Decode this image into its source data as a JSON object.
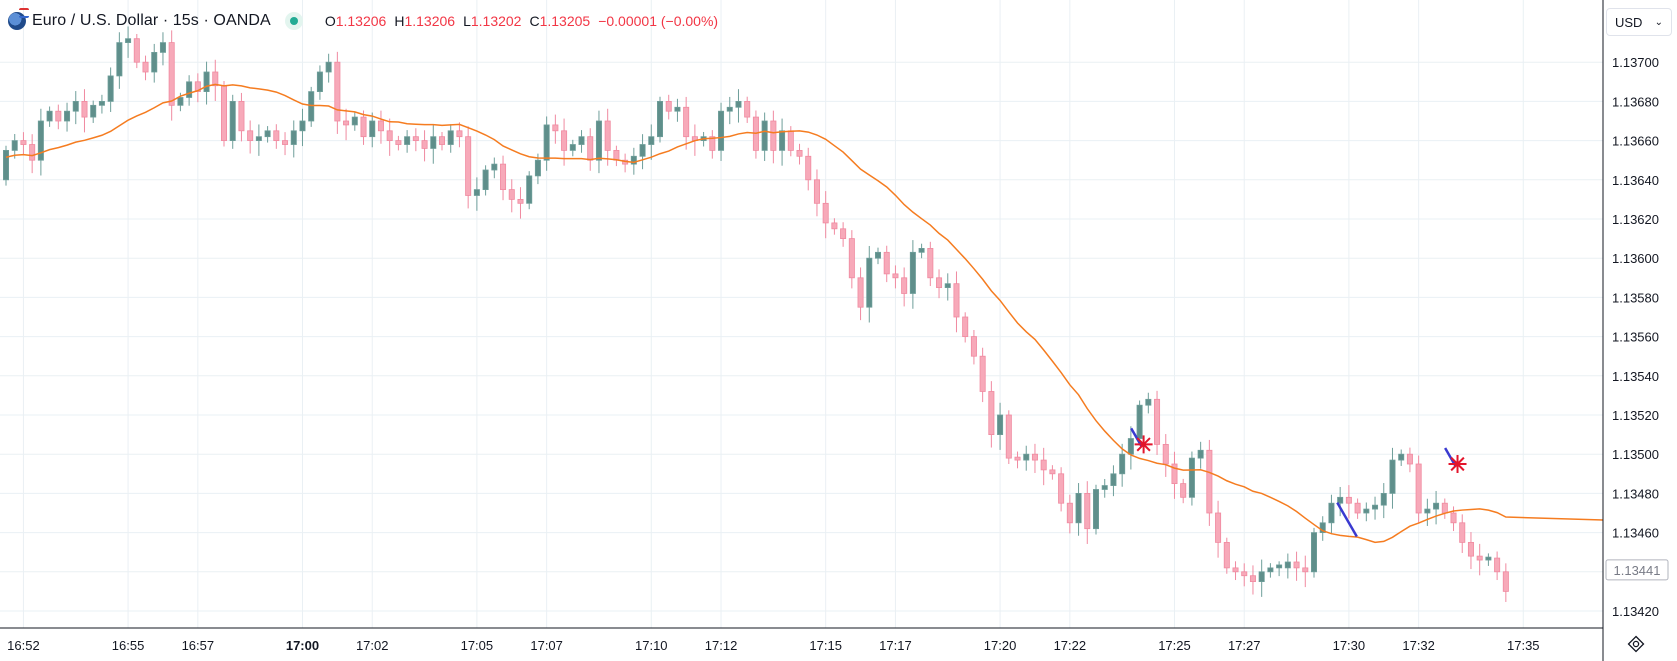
{
  "legend": {
    "title": "Euro / U.S. Dollar · 15s · OANDA",
    "ohlc": [
      {
        "k": "O",
        "v": "1.13206"
      },
      {
        "k": "H",
        "v": "1.13206"
      },
      {
        "k": "L",
        "v": "1.13202"
      },
      {
        "k": "C",
        "v": "1.13205"
      },
      {
        "k": "",
        "v": "−0.00001 (−0.00%)"
      }
    ]
  },
  "currency": {
    "label": "USD"
  },
  "colors": {
    "up": "#6e9e9a",
    "up_body": "#5f8f8b",
    "down": "#f7a9b9",
    "down_border": "#f08aa0",
    "ma": "#f57c20",
    "grid": "#eaf0f4",
    "marker_star": "#e3152c",
    "marker_line": "#3a3ad0"
  },
  "chart_data": {
    "type": "candlestick",
    "symbol": "Euro / U.S. Dollar",
    "interval": "15s",
    "source": "OANDA",
    "ylim": [
      1.13405,
      1.13722
    ],
    "yticks": [
      "1.13700",
      "1.13680",
      "1.13660",
      "1.13640",
      "1.13620",
      "1.13600",
      "1.13580",
      "1.13560",
      "1.13540",
      "1.13520",
      "1.13500",
      "1.13480",
      "1.13460",
      "1.13440",
      "1.13420"
    ],
    "current_price": "1.13441",
    "xticks": [
      {
        "label": "16:52",
        "i": 2,
        "bold": false
      },
      {
        "label": "16:55",
        "i": 14,
        "bold": false
      },
      {
        "label": "16:57",
        "i": 22,
        "bold": false
      },
      {
        "label": "17:00",
        "i": 34,
        "bold": true
      },
      {
        "label": "17:02",
        "i": 42,
        "bold": false
      },
      {
        "label": "17:05",
        "i": 54,
        "bold": false
      },
      {
        "label": "17:07",
        "i": 62,
        "bold": false
      },
      {
        "label": "17:10",
        "i": 74,
        "bold": false
      },
      {
        "label": "17:12",
        "i": 82,
        "bold": false
      },
      {
        "label": "17:15",
        "i": 94,
        "bold": false
      },
      {
        "label": "17:17",
        "i": 102,
        "bold": false
      },
      {
        "label": "17:20",
        "i": 114,
        "bold": false
      },
      {
        "label": "17:22",
        "i": 122,
        "bold": false
      },
      {
        "label": "17:25",
        "i": 134,
        "bold": false
      },
      {
        "label": "17:27",
        "i": 142,
        "bold": false
      },
      {
        "label": "17:30",
        "i": 154,
        "bold": false
      },
      {
        "label": "17:32",
        "i": 162,
        "bold": false
      },
      {
        "label": "17:35",
        "i": 174,
        "bold": false
      }
    ],
    "candles_close": [
      1.13655,
      1.1366,
      1.13658,
      1.1365,
      1.1367,
      1.13675,
      1.1367,
      1.13675,
      1.1368,
      1.13672,
      1.13678,
      1.1368,
      1.13693,
      1.1371,
      1.13712,
      1.137,
      1.13695,
      1.13705,
      1.1371,
      1.13678,
      1.13682,
      1.1369,
      1.13685,
      1.13695,
      1.13688,
      1.1366,
      1.1368,
      1.13665,
      1.1366,
      1.13662,
      1.13665,
      1.1366,
      1.13658,
      1.13665,
      1.1367,
      1.13685,
      1.13695,
      1.137,
      1.1367,
      1.13668,
      1.13672,
      1.13662,
      1.1367,
      1.13665,
      1.1366,
      1.13658,
      1.13662,
      1.1366,
      1.13656,
      1.13662,
      1.13658,
      1.13665,
      1.13662,
      1.13632,
      1.13635,
      1.13645,
      1.13648,
      1.13635,
      1.1363,
      1.13628,
      1.13642,
      1.1365,
      1.13668,
      1.13665,
      1.13655,
      1.13658,
      1.13662,
      1.1365,
      1.1367,
      1.13655,
      1.1365,
      1.13648,
      1.13652,
      1.13658,
      1.13662,
      1.1368,
      1.13675,
      1.13677,
      1.13662,
      1.1366,
      1.13662,
      1.13655,
      1.13675,
      1.13677,
      1.1368,
      1.13672,
      1.13655,
      1.1367,
      1.13655,
      1.13665,
      1.13655,
      1.13652,
      1.1364,
      1.13628,
      1.13618,
      1.13615,
      1.1361,
      1.1359,
      1.13575,
      1.136,
      1.13603,
      1.13592,
      1.1359,
      1.13582,
      1.13603,
      1.13605,
      1.1359,
      1.13585,
      1.13587,
      1.1357,
      1.1356,
      1.1355,
      1.13532,
      1.1351,
      1.1352,
      1.13498,
      1.13497,
      1.135,
      1.13497,
      1.13492,
      1.1349,
      1.13475,
      1.13465,
      1.1348,
      1.13462,
      1.13482,
      1.13484,
      1.1349,
      1.135,
      1.13508,
      1.13525,
      1.13528,
      1.13505,
      1.13495,
      1.13485,
      1.13478,
      1.13498,
      1.13502,
      1.1347,
      1.13455,
      1.13442,
      1.1344,
      1.13438,
      1.13435,
      1.1344,
      1.13442,
      1.13442,
      1.13445,
      1.13442,
      1.1344,
      1.1346,
      1.13465,
      1.13475,
      1.13478,
      1.13475,
      1.1347,
      1.13472,
      1.13474,
      1.1348,
      1.13497,
      1.135,
      1.13495,
      1.1347,
      1.13472,
      1.13475,
      1.1347,
      1.13465,
      1.13455,
      1.13448,
      1.13446,
      1.13447,
      1.1344,
      1.1343
    ]
  },
  "annotations": [
    {
      "type": "signal",
      "time": "17:24",
      "price": 1.13505
    },
    {
      "type": "signal",
      "time": "17:33",
      "price": 1.13495
    },
    {
      "type": "line",
      "time": "17:30",
      "price": 1.13462
    }
  ]
}
